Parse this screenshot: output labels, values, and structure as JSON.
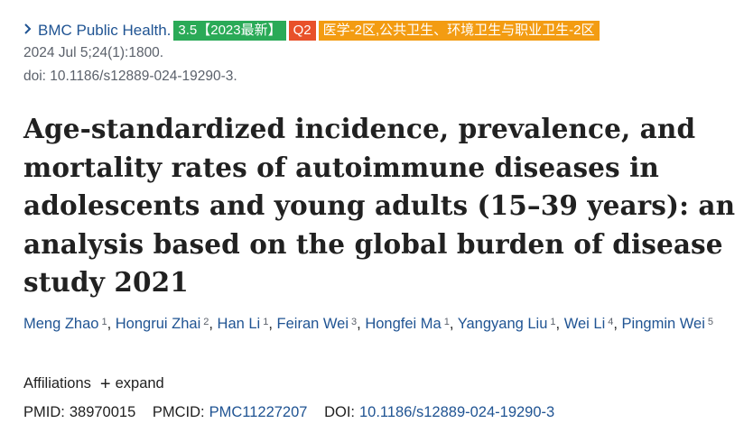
{
  "journal": {
    "name": "BMC Public Health.",
    "badges": {
      "impact": "3.5【2023最新】",
      "quartile": "Q2",
      "category": "医学-2区,公共卫生、环境卫生与职业卫生-2区"
    },
    "citation": "2024 Jul 5;24(1):1800.",
    "doi_line": "doi: 10.1186/s12889-024-19290-3."
  },
  "article": {
    "title": "Age-standardized incidence, prevalence, and mortality rates of autoimmune diseases in adolescents and young adults (15–39 years): an analysis based on the global burden of disease study 2021"
  },
  "authors": [
    {
      "name": "Meng Zhao",
      "aff": "1"
    },
    {
      "name": "Hongrui Zhai",
      "aff": "2"
    },
    {
      "name": "Han Li",
      "aff": "1"
    },
    {
      "name": "Feiran Wei",
      "aff": "3"
    },
    {
      "name": "Hongfei Ma",
      "aff": "1"
    },
    {
      "name": "Yangyang Liu",
      "aff": "1"
    },
    {
      "name": "Wei Li",
      "aff": "4"
    },
    {
      "name": "Pingmin Wei",
      "aff": "5"
    }
  ],
  "affiliations": {
    "label": "Affiliations",
    "expand_label": "expand"
  },
  "identifiers": {
    "pmid_label": "PMID:",
    "pmid": "38970015",
    "pmcid_label": "PMCID:",
    "pmcid": "PMC11227207",
    "doi_label": "DOI:",
    "doi": "10.1186/s12889-024-19290-3"
  },
  "colors": {
    "link": "#205493",
    "badge_green": "#2aaa57",
    "badge_red": "#e8512a",
    "badge_orange": "#f39c12"
  }
}
